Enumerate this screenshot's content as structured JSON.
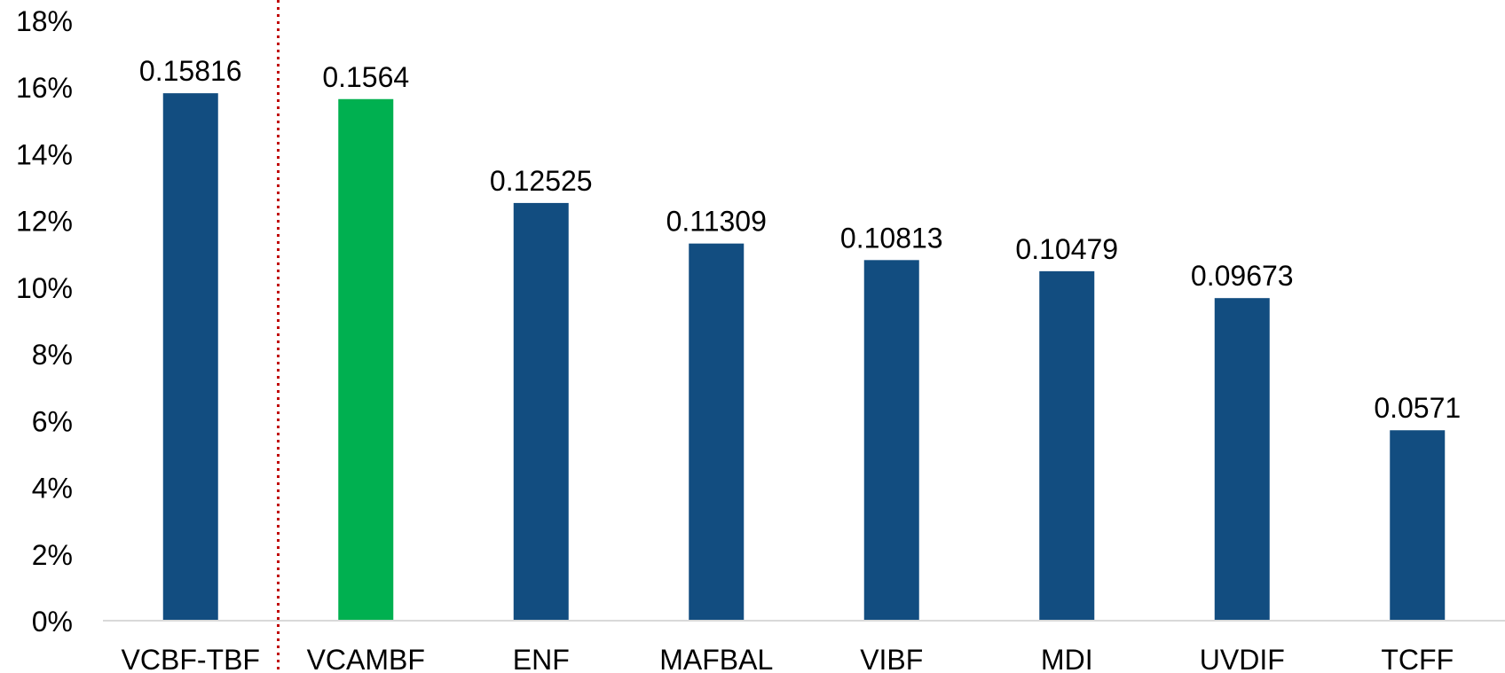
{
  "chart_data": {
    "type": "bar",
    "categories": [
      "VCBF-TBF",
      "VCAMBF",
      "ENF",
      "MAFBAL",
      "VIBF",
      "MDI",
      "UVDIF",
      "TCFF"
    ],
    "values": [
      0.15816,
      0.1564,
      0.12525,
      0.11309,
      0.10813,
      0.10479,
      0.09673,
      0.0571
    ],
    "data_labels": [
      "0.15816",
      "0.1564",
      "0.12525",
      "0.11309",
      "0.10813",
      "0.10479",
      "0.09673",
      "0.0571"
    ],
    "y_ticks": [
      "0%",
      "2%",
      "4%",
      "6%",
      "8%",
      "10%",
      "12%",
      "14%",
      "16%",
      "18%"
    ],
    "ylim": [
      0,
      0.18
    ],
    "title": "",
    "xlabel": "",
    "ylabel": "",
    "grid": false,
    "legend": "none",
    "colors": {
      "bar": "#124d80",
      "highlight": "#00b050",
      "divider": "#c00000",
      "axis": "#d9d9d9"
    },
    "highlight_index": 1,
    "divider_after_index": 0
  }
}
